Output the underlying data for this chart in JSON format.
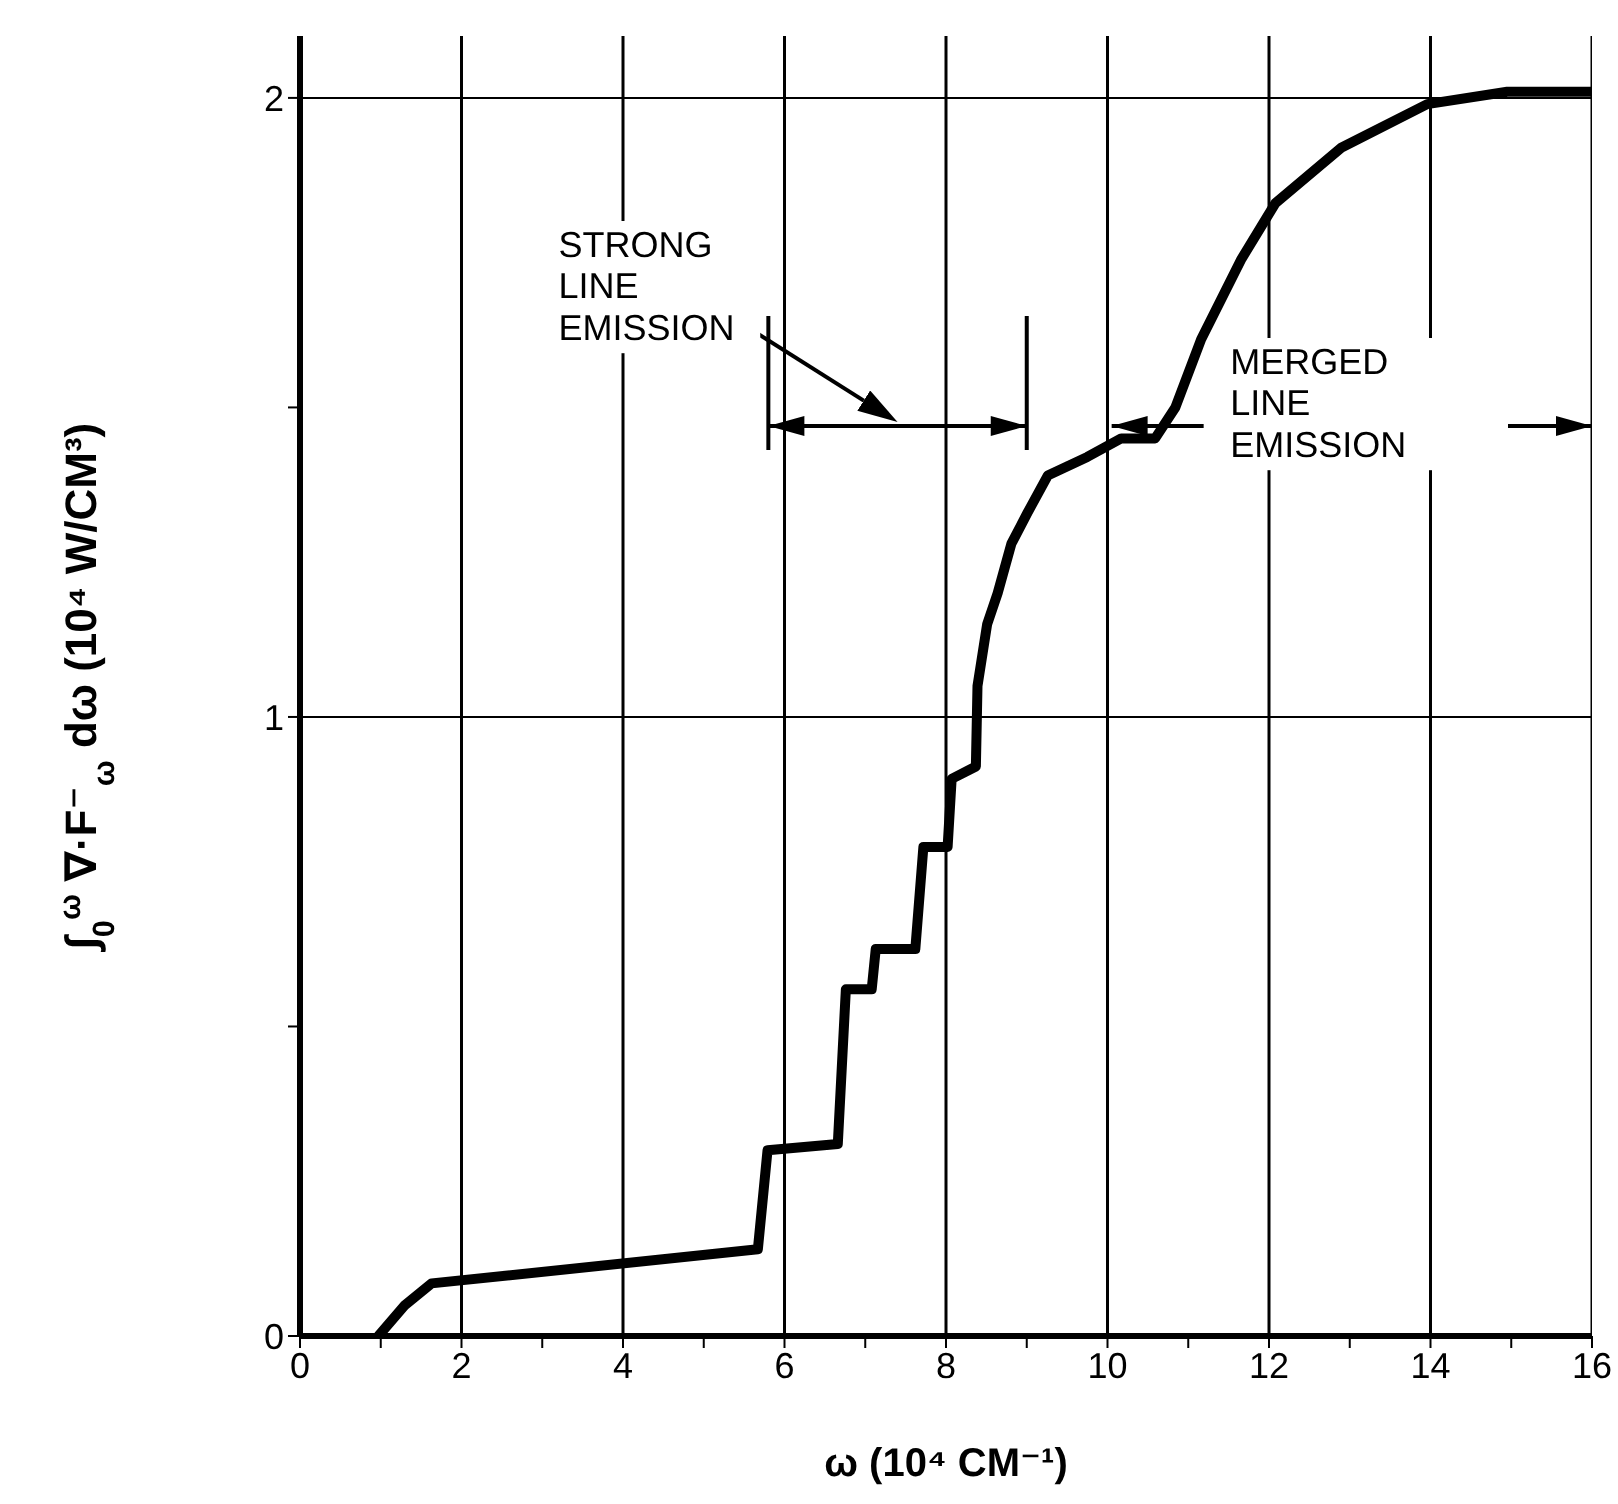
{
  "chart_data": {
    "type": "line",
    "xlabel": "ω (10⁴ CM⁻¹)",
    "ylabel": "∫$_{0}$$^{ω}$ ∇·F⁻$_{ω}$ dω (10⁴ W/CM³)",
    "x": [
      0.97,
      1.3,
      1.63,
      5.67,
      5.79,
      6.66,
      6.76,
      7.08,
      7.13,
      7.62,
      7.72,
      8.02,
      8.07,
      8.37,
      8.39,
      8.51,
      8.64,
      8.81,
      9.01,
      9.26,
      9.75,
      10.17,
      10.59,
      10.84,
      11.16,
      11.66,
      12.08,
      12.9,
      13.96,
      14.95,
      15.94,
      16
    ],
    "series": [
      {
        "color": "#000000",
        "values": [
          0.0,
          0.05,
          0.085,
          0.14,
          0.3,
          0.31,
          0.56,
          0.56,
          0.625,
          0.625,
          0.79,
          0.79,
          0.9,
          0.92,
          1.05,
          1.15,
          1.2,
          1.28,
          1.33,
          1.39,
          1.42,
          1.45,
          1.45,
          1.5,
          1.61,
          1.74,
          1.83,
          1.92,
          1.99,
          2.01,
          2.01,
          2.01
        ]
      }
    ],
    "xlim": [
      0,
      16
    ],
    "xticks": [
      0,
      {
        "value": 1,
        "label": null
      },
      2,
      {
        "value": 3,
        "label": null
      },
      4,
      {
        "value": 5,
        "label": null
      },
      6,
      {
        "value": 7,
        "label": null
      },
      8,
      {
        "value": 9,
        "label": null
      },
      10,
      {
        "value": 11,
        "label": null
      },
      12,
      {
        "value": 13,
        "label": null
      },
      14,
      {
        "value": 15,
        "label": null
      },
      16
    ],
    "ylim": [
      0,
      2.1
    ],
    "yticks": [
      0,
      {
        "value": 0.5,
        "label": null
      },
      1,
      {
        "value": 1.5,
        "label": null
      },
      2
    ],
    "grid": true,
    "annotations": [
      "STRONG LINE EMISSION",
      "MERGED LINE EMISSION"
    ]
  }
}
